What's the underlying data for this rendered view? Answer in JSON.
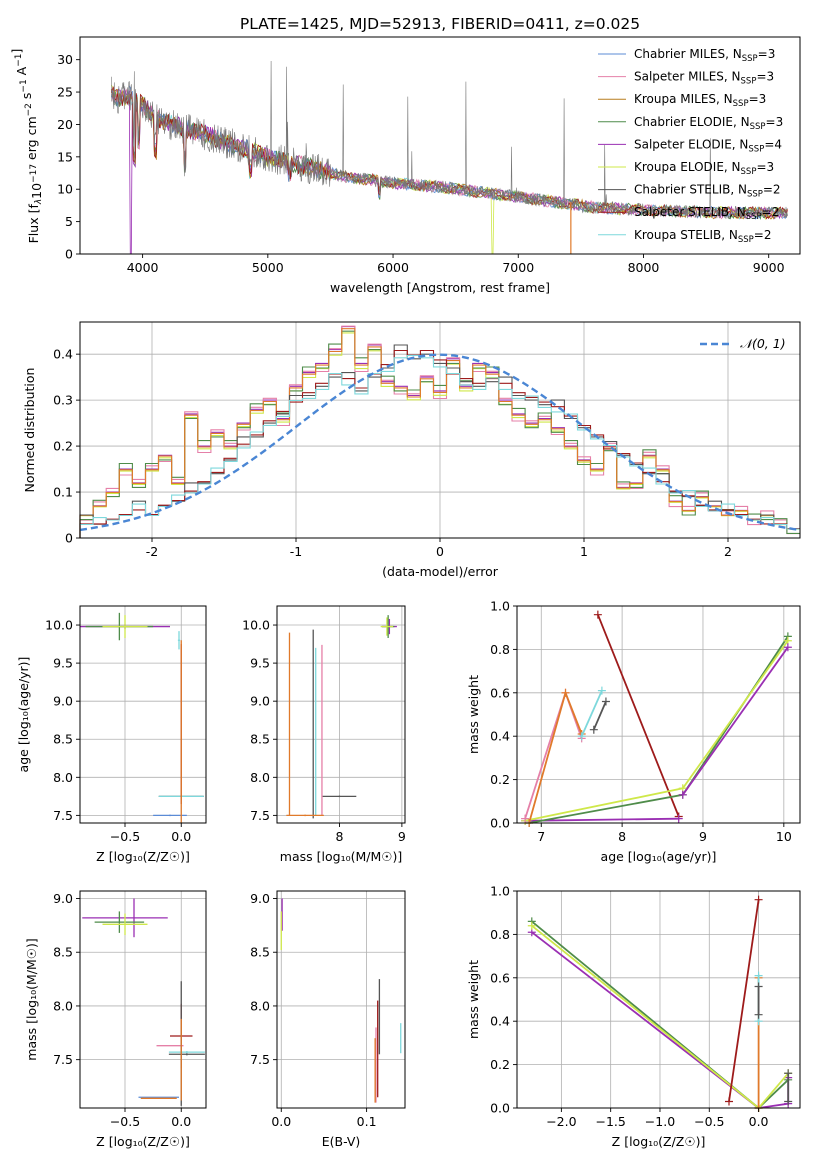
{
  "figure_title": "PLATE=1425, MJD=52913, FIBERID=0411, z=0.025",
  "legend_spectrum": [
    {
      "name": "Chabrier MILES",
      "nssp": "3",
      "color": "#5b8bd6"
    },
    {
      "name": "Salpeter MILES",
      "nssp": "3",
      "color": "#e580a8"
    },
    {
      "name": "Kroupa MILES",
      "nssp": "3",
      "color": "#b77d1f"
    },
    {
      "name": "Chabrier ELODIE",
      "nssp": "3",
      "color": "#4f8c4a"
    },
    {
      "name": "Salpeter ELODIE",
      "nssp": "4",
      "color": "#9a2fb3"
    },
    {
      "name": "Kroupa ELODIE",
      "nssp": "3",
      "color": "#cfe84a"
    },
    {
      "name": "Chabrier STELIB",
      "nssp": "2",
      "color": "#555555"
    },
    {
      "name": "Salpeter STELIB",
      "nssp": "2",
      "color": "#9e1b1b"
    },
    {
      "name": "Kroupa STELIB",
      "nssp": "2",
      "color": "#7dd8dc"
    }
  ],
  "legend_hist_label": "𝒩(0, 1)",
  "chart_data": [
    {
      "id": "spectrum",
      "type": "line",
      "xlabel": "wavelength [Angstrom, rest frame]",
      "ylabel_main": "Flux [f",
      "ylabel_sub": "λ",
      "ylabel_rest": "10",
      "ylabel_exp1": "−17",
      "ylabel_mid": " erg cm",
      "ylabel_exp2": "−2",
      "ylabel_s": " s",
      "ylabel_exp3": "−1",
      "ylabel_end": " A",
      "ylabel_exp4": "−1",
      "ylabel_close": "]",
      "xlim": [
        3500,
        9250
      ],
      "ylim": [
        0,
        33.5
      ],
      "xticks": [
        4000,
        5000,
        6000,
        7000,
        8000,
        9000
      ],
      "yticks": [
        0,
        5,
        10,
        15,
        20,
        25,
        30
      ],
      "wave_range": [
        3750,
        9150
      ],
      "continuum": [
        [
          3750,
          25
        ],
        [
          3800,
          24
        ],
        [
          3900,
          24.5
        ],
        [
          4000,
          23
        ],
        [
          4100,
          21
        ],
        [
          4300,
          19.5
        ],
        [
          4500,
          18.5
        ],
        [
          4700,
          17
        ],
        [
          5000,
          15
        ],
        [
          5300,
          13.5
        ],
        [
          5600,
          12
        ],
        [
          6000,
          11
        ],
        [
          6400,
          10.3
        ],
        [
          6800,
          9.3
        ],
        [
          7200,
          8.3
        ],
        [
          7600,
          7.2
        ],
        [
          8000,
          6.8
        ],
        [
          8500,
          6.4
        ],
        [
          9150,
          6.3
        ]
      ]
    },
    {
      "id": "residual_hist",
      "type": "step",
      "xlabel": "(data-model)/error",
      "ylabel": "Normed distribution",
      "xlim": [
        -2.5,
        2.5
      ],
      "ylim": [
        0,
        0.47
      ],
      "xticks": [
        -2,
        -1,
        0,
        1,
        2
      ],
      "yticks": [
        0,
        0.1,
        0.2,
        0.3,
        0.4
      ],
      "bins_a": [
        0.05,
        0.07,
        0.1,
        0.15,
        0.12,
        0.15,
        0.18,
        0.12,
        0.27,
        0.2,
        0.23,
        0.2,
        0.25,
        0.28,
        0.3,
        0.26,
        0.33,
        0.36,
        0.38,
        0.41,
        0.46,
        0.38,
        0.42,
        0.34,
        0.33,
        0.31,
        0.35,
        0.32,
        0.39,
        0.33,
        0.38,
        0.36,
        0.3,
        0.27,
        0.25,
        0.26,
        0.24,
        0.2,
        0.17,
        0.15,
        0.2,
        0.11,
        0.12,
        0.18,
        0.15,
        0.08,
        0.06,
        0.09,
        0.07,
        0.05,
        0.06,
        0.04,
        0.05,
        0.03,
        0.02
      ],
      "bins_b": [
        0.03,
        0.03,
        0.04,
        0.05,
        0.06,
        0.05,
        0.07,
        0.08,
        0.1,
        0.12,
        0.14,
        0.17,
        0.2,
        0.22,
        0.25,
        0.27,
        0.29,
        0.31,
        0.33,
        0.35,
        0.34,
        0.32,
        0.35,
        0.37,
        0.4,
        0.39,
        0.4,
        0.38,
        0.35,
        0.34,
        0.33,
        0.34,
        0.33,
        0.31,
        0.3,
        0.29,
        0.28,
        0.26,
        0.24,
        0.22,
        0.19,
        0.18,
        0.16,
        0.14,
        0.12,
        0.1,
        0.09,
        0.07,
        0.06,
        0.06,
        0.05,
        0.04,
        0.03,
        0.03,
        0.02
      ],
      "gauss": {
        "mu": 0,
        "sigma": 1
      }
    },
    {
      "id": "age_vs_Z",
      "type": "scatter",
      "xlabel": "Z [log₁₀(Z/Z☉)]",
      "ylabel": "age  [log₁₀(age/yr)]",
      "xlim": [
        -0.9,
        0.22
      ],
      "ylim": [
        7.4,
        10.25
      ],
      "xticks": [
        -0.5,
        0.0
      ],
      "xticklabels": [
        "−0.5",
        "0.0"
      ],
      "yticks": [
        7.5,
        8.0,
        8.5,
        9.0,
        9.5,
        10.0
      ],
      "points": [
        {
          "x": -0.5,
          "y": 9.98,
          "ex": 0.4,
          "ey": 0.03,
          "c": "#9a2fb3"
        },
        {
          "x": -0.55,
          "y": 9.98,
          "ex": 0.3,
          "ey": 0.18,
          "c": "#4f8c4a"
        },
        {
          "x": -0.5,
          "y": 9.98,
          "ex": 0.2,
          "ey": 0.15,
          "c": "#cfe84a"
        },
        {
          "x": 0.0,
          "y": 7.75,
          "ex": 0.2,
          "ey": 0.02,
          "c": "#555555"
        },
        {
          "x": 0.0,
          "y": 7.75,
          "ex": 0.2,
          "ey": 0.02,
          "c": "#7dd8dc"
        },
        {
          "x": -0.1,
          "y": 7.5,
          "ex": 0.15,
          "ey": 0.01,
          "c": "#5b8bd6"
        },
        {
          "x": -0.02,
          "y": 9.8,
          "ex": 0.01,
          "ey": 0.12,
          "c": "#7dd8dc"
        },
        {
          "x": 0.0,
          "y": 8.7,
          "ex": 0.0,
          "ey": 1.05,
          "c": "#9e1b1b"
        },
        {
          "x": 0.0,
          "y": 8.6,
          "ex": 0.0,
          "ey": 1.2,
          "c": "#e07a2b"
        }
      ]
    },
    {
      "id": "age_vs_mass",
      "type": "scatter",
      "xlabel": "mass [log₁₀(M/M☉)]",
      "ylabel": "",
      "xlim": [
        7.0,
        9.05
      ],
      "ylim": [
        7.4,
        10.25
      ],
      "xticks": [
        8,
        9
      ],
      "yticks": [
        7.5,
        8.0,
        8.5,
        9.0,
        9.5,
        10.0
      ],
      "points": [
        {
          "x": 8.8,
          "y": 9.98,
          "ex": 0.12,
          "ey": 0.1,
          "c": "#9a2fb3"
        },
        {
          "x": 8.78,
          "y": 9.98,
          "ex": 0.1,
          "ey": 0.15,
          "c": "#4f8c4a"
        },
        {
          "x": 8.76,
          "y": 9.98,
          "ex": 0.1,
          "ey": 0.12,
          "c": "#cfe84a"
        },
        {
          "x": 8.0,
          "y": 7.75,
          "ex": 0.27,
          "ey": 0.01,
          "c": "#555555"
        },
        {
          "x": 7.2,
          "y": 8.7,
          "ex": 0.0,
          "ey": 1.2,
          "c": "#e07a2b"
        },
        {
          "x": 7.58,
          "y": 8.7,
          "ex": 0.0,
          "ey": 1.24,
          "c": "#555555"
        },
        {
          "x": 7.72,
          "y": 8.62,
          "ex": 0.0,
          "ey": 1.12,
          "c": "#e580a8"
        },
        {
          "x": 7.62,
          "y": 8.6,
          "ex": 0.0,
          "ey": 1.1,
          "c": "#7dd8dc"
        },
        {
          "x": 7.45,
          "y": 7.5,
          "ex": 0.3,
          "ey": 0.01,
          "c": "#e07a2b"
        }
      ]
    },
    {
      "id": "weight_vs_age",
      "type": "line",
      "xlabel": "age  [log₁₀(age/yr)]",
      "ylabel": "mass weight",
      "xlim": [
        6.7,
        10.2
      ],
      "ylim": [
        0,
        1.0
      ],
      "xticks": [
        7,
        8,
        9,
        10
      ],
      "yticks": [
        0,
        0.2,
        0.4,
        0.6,
        0.8,
        1.0
      ],
      "yticklabels": [
        "0.0",
        "0.2",
        "0.4",
        "0.6",
        "0.8",
        "1.0"
      ],
      "series": [
        {
          "c": "#9e1b1b",
          "pts": [
            [
              7.7,
              0.96
            ],
            [
              8.7,
              0.03
            ]
          ]
        },
        {
          "c": "#9a2fb3",
          "pts": [
            [
              6.8,
              0.01
            ],
            [
              8.7,
              0.02
            ]
          ]
        },
        {
          "c": "#4f8c4a",
          "pts": [
            [
              6.85,
              0.0
            ],
            [
              8.75,
              0.13
            ],
            [
              10.05,
              0.86
            ]
          ]
        },
        {
          "c": "#cfe84a",
          "pts": [
            [
              6.8,
              0.01
            ],
            [
              8.75,
              0.16
            ],
            [
              10.05,
              0.84
            ]
          ]
        },
        {
          "c": "#9a2fb3",
          "pts": [
            [
              8.75,
              0.13
            ],
            [
              10.05,
              0.81
            ]
          ]
        },
        {
          "c": "#e580a8",
          "pts": [
            [
              6.8,
              0.02
            ],
            [
              7.3,
              0.6
            ],
            [
              7.5,
              0.39
            ]
          ]
        },
        {
          "c": "#e07a2b",
          "pts": [
            [
              6.85,
              0.0
            ],
            [
              7.3,
              0.6
            ],
            [
              7.5,
              0.41
            ]
          ]
        },
        {
          "c": "#7dd8dc",
          "pts": [
            [
              7.5,
              0.4
            ],
            [
              7.75,
              0.61
            ]
          ]
        },
        {
          "c": "#555555",
          "pts": [
            [
              7.65,
              0.43
            ],
            [
              7.8,
              0.56
            ]
          ]
        }
      ]
    },
    {
      "id": "mass_vs_Z",
      "type": "scatter",
      "xlabel": "Z [log₁₀(Z/Z☉)]",
      "ylabel": "mass [log₁₀(M/M☉)]",
      "xlim": [
        -0.9,
        0.22
      ],
      "ylim": [
        7.05,
        9.07
      ],
      "xticks": [
        -0.5,
        0.0
      ],
      "xticklabels": [
        "−0.5",
        "0.0"
      ],
      "yticks": [
        7.5,
        8.0,
        8.5,
        9.0
      ],
      "points": [
        {
          "x": -0.5,
          "y": 8.82,
          "ex": 0.38,
          "ey": 0.0,
          "c": "#9a2fb3"
        },
        {
          "x": -0.42,
          "y": 8.82,
          "ex": 0.0,
          "ey": 0.18,
          "c": "#9a2fb3"
        },
        {
          "x": -0.55,
          "y": 8.78,
          "ex": 0.22,
          "ey": 0.1,
          "c": "#4f8c4a"
        },
        {
          "x": -0.5,
          "y": 8.76,
          "ex": 0.2,
          "ey": 0.1,
          "c": "#cfe84a"
        },
        {
          "x": 0.0,
          "y": 7.72,
          "ex": 0.1,
          "ey": 0.3,
          "c": "#9e1b1b"
        },
        {
          "x": -0.1,
          "y": 7.63,
          "ex": 0.12,
          "ey": 0.0,
          "c": "#e580a8"
        },
        {
          "x": 0.05,
          "y": 7.55,
          "ex": 0.16,
          "ey": 0.01,
          "c": "#555555"
        },
        {
          "x": 0.05,
          "y": 7.57,
          "ex": 0.16,
          "ey": 0.01,
          "c": "#7dd8dc"
        },
        {
          "x": 0.0,
          "y": 7.65,
          "ex": 0.0,
          "ey": 0.58,
          "c": "#555555"
        },
        {
          "x": 0.0,
          "y": 7.5,
          "ex": 0.0,
          "ey": 0.38,
          "c": "#e07a2b"
        },
        {
          "x": -0.2,
          "y": 7.15,
          "ex": 0.18,
          "ey": 0.0,
          "c": "#5b8bd6"
        },
        {
          "x": -0.2,
          "y": 7.14,
          "ex": 0.16,
          "ey": 0.0,
          "c": "#e07a2b"
        }
      ]
    },
    {
      "id": "mass_vs_EBV",
      "type": "scatter",
      "xlabel": "E(B-V)",
      "ylabel": "",
      "xlim": [
        -0.005,
        0.145
      ],
      "ylim": [
        7.05,
        9.07
      ],
      "xticks": [
        0.0,
        0.1
      ],
      "xticklabels": [
        "0.0",
        "0.1"
      ],
      "yticks": [
        7.5,
        8.0,
        8.5,
        9.0
      ],
      "points": [
        {
          "x": 0.001,
          "y": 8.85,
          "ex": 0.0,
          "ey": 0.15,
          "c": "#9a2fb3"
        },
        {
          "x": 0.0,
          "y": 8.7,
          "ex": 0.0,
          "ey": 0.18,
          "c": "#cfe84a"
        },
        {
          "x": 0.115,
          "y": 7.9,
          "ex": 0.0,
          "ey": 0.35,
          "c": "#555555"
        },
        {
          "x": 0.113,
          "y": 7.6,
          "ex": 0.0,
          "ey": 0.45,
          "c": "#9e1b1b"
        },
        {
          "x": 0.111,
          "y": 7.45,
          "ex": 0.0,
          "ey": 0.35,
          "c": "#e580a8"
        },
        {
          "x": 0.11,
          "y": 7.4,
          "ex": 0.0,
          "ey": 0.3,
          "c": "#e07a2b"
        },
        {
          "x": 0.14,
          "y": 7.7,
          "ex": 0.0,
          "ey": 0.14,
          "c": "#7dd8dc"
        }
      ]
    },
    {
      "id": "weight_vs_Z",
      "type": "line",
      "xlabel": "Z [log₁₀(Z/Z☉)]",
      "ylabel": "mass weight",
      "xlim": [
        -2.45,
        0.42
      ],
      "ylim": [
        0,
        1.0
      ],
      "xticks": [
        -2.0,
        -1.5,
        -1.0,
        -0.5,
        0.0
      ],
      "xticklabels": [
        "−2.0",
        "−1.5",
        "−1.0",
        "−0.5",
        "0.0"
      ],
      "yticks": [
        0,
        0.2,
        0.4,
        0.6,
        0.8,
        1.0
      ],
      "yticklabels": [
        "0.0",
        "0.2",
        "0.4",
        "0.6",
        "0.8",
        "1.0"
      ],
      "series": [
        {
          "c": "#9a2fb3",
          "pts": [
            [
              -2.3,
              0.81
            ],
            [
              0.0,
              0.0
            ],
            [
              0.3,
              0.02
            ],
            [
              0.3,
              0.14
            ]
          ]
        },
        {
          "c": "#4f8c4a",
          "pts": [
            [
              -2.3,
              0.86
            ],
            [
              0.0,
              0.0
            ],
            [
              0.3,
              0.13
            ]
          ]
        },
        {
          "c": "#cfe84a",
          "pts": [
            [
              -2.3,
              0.84
            ],
            [
              0.0,
              0.0
            ],
            [
              0.3,
              0.16
            ]
          ]
        },
        {
          "c": "#9e1b1b",
          "pts": [
            [
              -0.3,
              0.03
            ],
            [
              0.0,
              0.96
            ]
          ]
        },
        {
          "c": "#e07a2b",
          "pts": [
            [
              0.0,
              0.0
            ],
            [
              0.0,
              0.6
            ]
          ]
        },
        {
          "c": "#7dd8dc",
          "pts": [
            [
              0.0,
              0.4
            ],
            [
              0.0,
              0.61
            ]
          ]
        },
        {
          "c": "#555555",
          "pts": [
            [
              0.0,
              0.43
            ],
            [
              0.0,
              0.56
            ]
          ]
        },
        {
          "c": "#555555",
          "pts": [
            [
              0.3,
              0.03
            ],
            [
              0.3,
              0.16
            ]
          ]
        }
      ]
    }
  ]
}
